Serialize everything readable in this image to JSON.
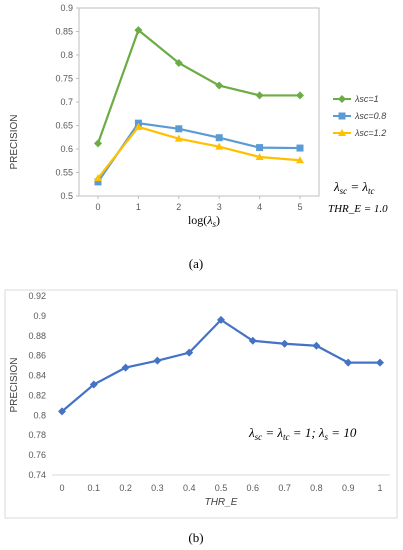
{
  "chart_data": [
    {
      "type": "line",
      "ylabel": "PRECISION",
      "xlabel": "log(λs)",
      "x": [
        0,
        1,
        2,
        3,
        4,
        5
      ],
      "x_ticks": [
        "0",
        "1",
        "2",
        "3",
        "4",
        "5"
      ],
      "y_ticks": [
        "0.5",
        "0.55",
        "0.6",
        "0.65",
        "0.7",
        "0.75",
        "0.8",
        "0.85",
        "0.9"
      ],
      "ylim": [
        0.5,
        0.9
      ],
      "grid": false,
      "legend_position": "right",
      "series": [
        {
          "name": "λsc=1",
          "color": "#6cac45",
          "marker": "diamond",
          "values": [
            0.612,
            0.853,
            0.783,
            0.735,
            0.714,
            0.714
          ]
        },
        {
          "name": "λsc=0.8",
          "color": "#5b9bd5",
          "marker": "square",
          "values": [
            0.53,
            0.655,
            0.643,
            0.624,
            0.603,
            0.602
          ]
        },
        {
          "name": "λsc=1.2",
          "color": "#ffc000",
          "marker": "triangle",
          "values": [
            0.538,
            0.647,
            0.622,
            0.605,
            0.583,
            0.576
          ]
        }
      ],
      "annotation_line1": "λsc = λtc",
      "annotation_line2": "THR_E = 1.0",
      "caption": "(a)"
    },
    {
      "type": "line",
      "ylabel": "PRECISION",
      "xlabel": "THR_E",
      "x": [
        0,
        0.1,
        0.2,
        0.3,
        0.4,
        0.5,
        0.6,
        0.7,
        0.8,
        0.9,
        1
      ],
      "x_ticks": [
        "0",
        "0.1",
        "0.2",
        "0.3",
        "0.4",
        "0.5",
        "0.6",
        "0.7",
        "0.8",
        "0.9",
        "1"
      ],
      "y_ticks": [
        "0.74",
        "0.76",
        "0.78",
        "0.8",
        "0.82",
        "0.84",
        "0.86",
        "0.88",
        "0.9",
        "0.92"
      ],
      "ylim": [
        0.74,
        0.92
      ],
      "grid": false,
      "series": [
        {
          "color": "#4472c4",
          "marker": "diamond",
          "values": [
            0.804,
            0.831,
            0.848,
            0.855,
            0.863,
            0.896,
            0.875,
            0.872,
            0.87,
            0.853,
            0.853
          ]
        }
      ],
      "annotation": "λsc = λtc = 1; λs = 10",
      "caption": "(b)"
    }
  ]
}
